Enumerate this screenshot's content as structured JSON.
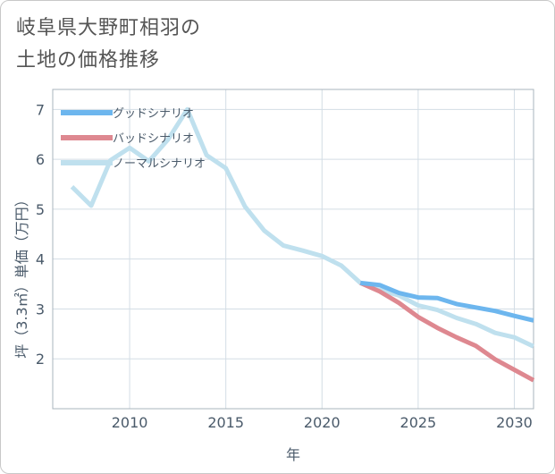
{
  "chart_data": {
    "type": "line",
    "title_lines": [
      "岐阜県大野町相羽の",
      "土地の価格推移"
    ],
    "xlabel": "年",
    "ylabel": "坪（3.3㎡）単価（万円）",
    "xlim": [
      2006,
      2031
    ],
    "ylim": [
      1,
      7.4
    ],
    "xticks": [
      2010,
      2015,
      2020,
      2025,
      2030
    ],
    "yticks": [
      2,
      3,
      4,
      5,
      6,
      7
    ],
    "xtick_labels": [
      "2010",
      "2015",
      "2020",
      "2025",
      "2030"
    ],
    "ytick_labels": [
      "2",
      "3",
      "4",
      "5",
      "6",
      "7"
    ],
    "legend_position": "top-left",
    "series": [
      {
        "name": "グッドシナリオ",
        "color": "#6db6ee",
        "x": [
          2022,
          2023,
          2024,
          2025,
          2026,
          2027,
          2028,
          2029,
          2030,
          2031
        ],
        "y": [
          3.52,
          3.48,
          3.32,
          3.23,
          3.22,
          3.1,
          3.03,
          2.96,
          2.86,
          2.77
        ]
      },
      {
        "name": "バッドシナリオ",
        "color": "#de8890",
        "x": [
          2022,
          2023,
          2024,
          2025,
          2026,
          2027,
          2028,
          2029,
          2030,
          2031
        ],
        "y": [
          3.52,
          3.35,
          3.12,
          2.84,
          2.62,
          2.43,
          2.26,
          1.99,
          1.78,
          1.57
        ]
      },
      {
        "name": "ノーマルシナリオ",
        "color": "#bfe0ee",
        "x": [
          2007,
          2008,
          2009,
          2010,
          2011,
          2012,
          2013,
          2014,
          2015,
          2016,
          2017,
          2018,
          2019,
          2020,
          2021,
          2022,
          2023,
          2024,
          2025,
          2026,
          2027,
          2028,
          2029,
          2030,
          2031
        ],
        "y": [
          5.45,
          5.07,
          5.98,
          6.23,
          5.96,
          6.4,
          7.0,
          6.08,
          5.82,
          5.05,
          4.57,
          4.27,
          4.17,
          4.06,
          3.87,
          3.52,
          3.38,
          3.27,
          3.07,
          2.98,
          2.82,
          2.7,
          2.52,
          2.43,
          2.25
        ]
      }
    ]
  }
}
